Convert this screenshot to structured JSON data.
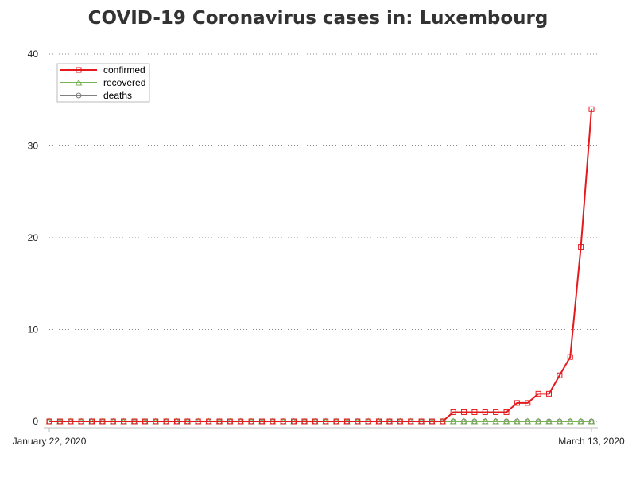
{
  "chart_data": {
    "type": "line",
    "title": "COVID-19 Coronavirus cases in: Luxembourg",
    "xlabel": "",
    "ylabel": "",
    "x_start": "2020-01-22",
    "x_end": "2020-03-13",
    "x_tick_labels": [
      "January 22, 2020",
      "March 13, 2020"
    ],
    "ylim": [
      0,
      40
    ],
    "y_ticks": [
      0,
      10,
      20,
      30,
      40
    ],
    "grid": "horizontal dotted",
    "legend_position": "top-left",
    "series": [
      {
        "name": "confirmed",
        "color": "#e41a1c",
        "marker": "square",
        "values": [
          0,
          0,
          0,
          0,
          0,
          0,
          0,
          0,
          0,
          0,
          0,
          0,
          0,
          0,
          0,
          0,
          0,
          0,
          0,
          0,
          0,
          0,
          0,
          0,
          0,
          0,
          0,
          0,
          0,
          0,
          0,
          0,
          0,
          0,
          0,
          0,
          0,
          0,
          1,
          1,
          1,
          1,
          1,
          1,
          2,
          2,
          3,
          3,
          5,
          7,
          19,
          34
        ]
      },
      {
        "name": "recovered",
        "color": "#77b255",
        "marker": "triangle",
        "values": [
          0,
          0,
          0,
          0,
          0,
          0,
          0,
          0,
          0,
          0,
          0,
          0,
          0,
          0,
          0,
          0,
          0,
          0,
          0,
          0,
          0,
          0,
          0,
          0,
          0,
          0,
          0,
          0,
          0,
          0,
          0,
          0,
          0,
          0,
          0,
          0,
          0,
          0,
          0,
          0,
          0,
          0,
          0,
          0,
          0,
          0,
          0,
          0,
          0,
          0,
          0,
          0
        ]
      },
      {
        "name": "deaths",
        "color": "#808080",
        "marker": "circle",
        "values": [
          0,
          0,
          0,
          0,
          0,
          0,
          0,
          0,
          0,
          0,
          0,
          0,
          0,
          0,
          0,
          0,
          0,
          0,
          0,
          0,
          0,
          0,
          0,
          0,
          0,
          0,
          0,
          0,
          0,
          0,
          0,
          0,
          0,
          0,
          0,
          0,
          0,
          0,
          0,
          0,
          0,
          0,
          0,
          0,
          0,
          0,
          0,
          0,
          0,
          0,
          0,
          0
        ]
      }
    ]
  }
}
